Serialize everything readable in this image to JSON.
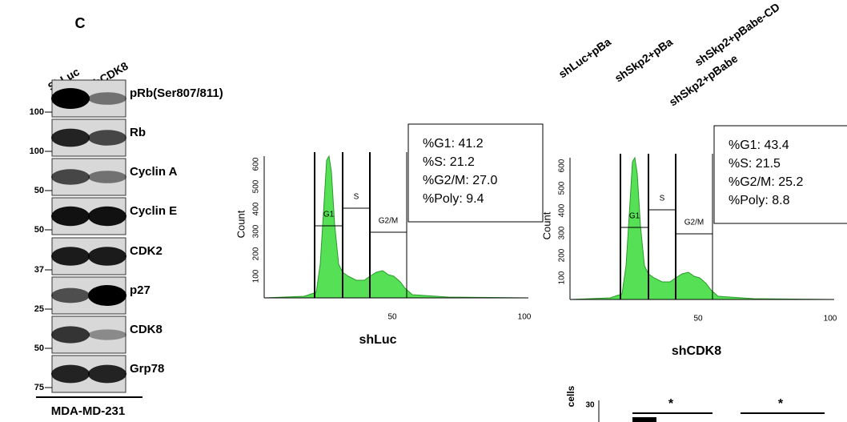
{
  "panel_label": "C",
  "blot": {
    "lanes": [
      "ShLuc",
      "ShCDK8"
    ],
    "rows": [
      {
        "marker": "100",
        "label": "pRb(Ser807/811)"
      },
      {
        "marker": "100",
        "label": "Rb"
      },
      {
        "marker": "50",
        "label": "Cyclin A"
      },
      {
        "marker": "50",
        "label": "Cyclin E"
      },
      {
        "marker": "37",
        "label": "CDK2"
      },
      {
        "marker": "25",
        "label": "p27"
      },
      {
        "marker": "50",
        "label": "CDK8"
      },
      {
        "marker": "75",
        "label": "Grp78"
      }
    ],
    "cell_line": "MDA-MD-231"
  },
  "flow": [
    {
      "name": "shLuc",
      "y_label": "Count",
      "yticks": [
        "100",
        "200",
        "300",
        "400",
        "500",
        "600"
      ],
      "xticks": [
        "50",
        "100"
      ],
      "gates": [
        "G1",
        "S",
        "G2/M"
      ],
      "stats": [
        "%G1: 41.2",
        "%S: 21.2",
        "%G2/M: 27.0",
        "%Poly: 9.4"
      ]
    },
    {
      "name": "shCDK8",
      "y_label": "Count",
      "yticks": [
        "100",
        "200",
        "300",
        "400",
        "500",
        "600"
      ],
      "xticks": [
        "50",
        "100"
      ],
      "gates": [
        "G1",
        "S",
        "G2/M"
      ],
      "stats": [
        "%G1: 43.4",
        "%S: 21.5",
        "%G2/M: 25.2",
        "%Poly: 8.8"
      ]
    }
  ],
  "top_labels": [
    "shLuc+pBa",
    "shSkp2+pBa",
    "shSkp2+pBabe-CD",
    "shSkp2+pBabe"
  ],
  "bar_fragment": {
    "y_label": "cells",
    "ytick": "30",
    "significance": [
      "*",
      "*"
    ]
  }
}
